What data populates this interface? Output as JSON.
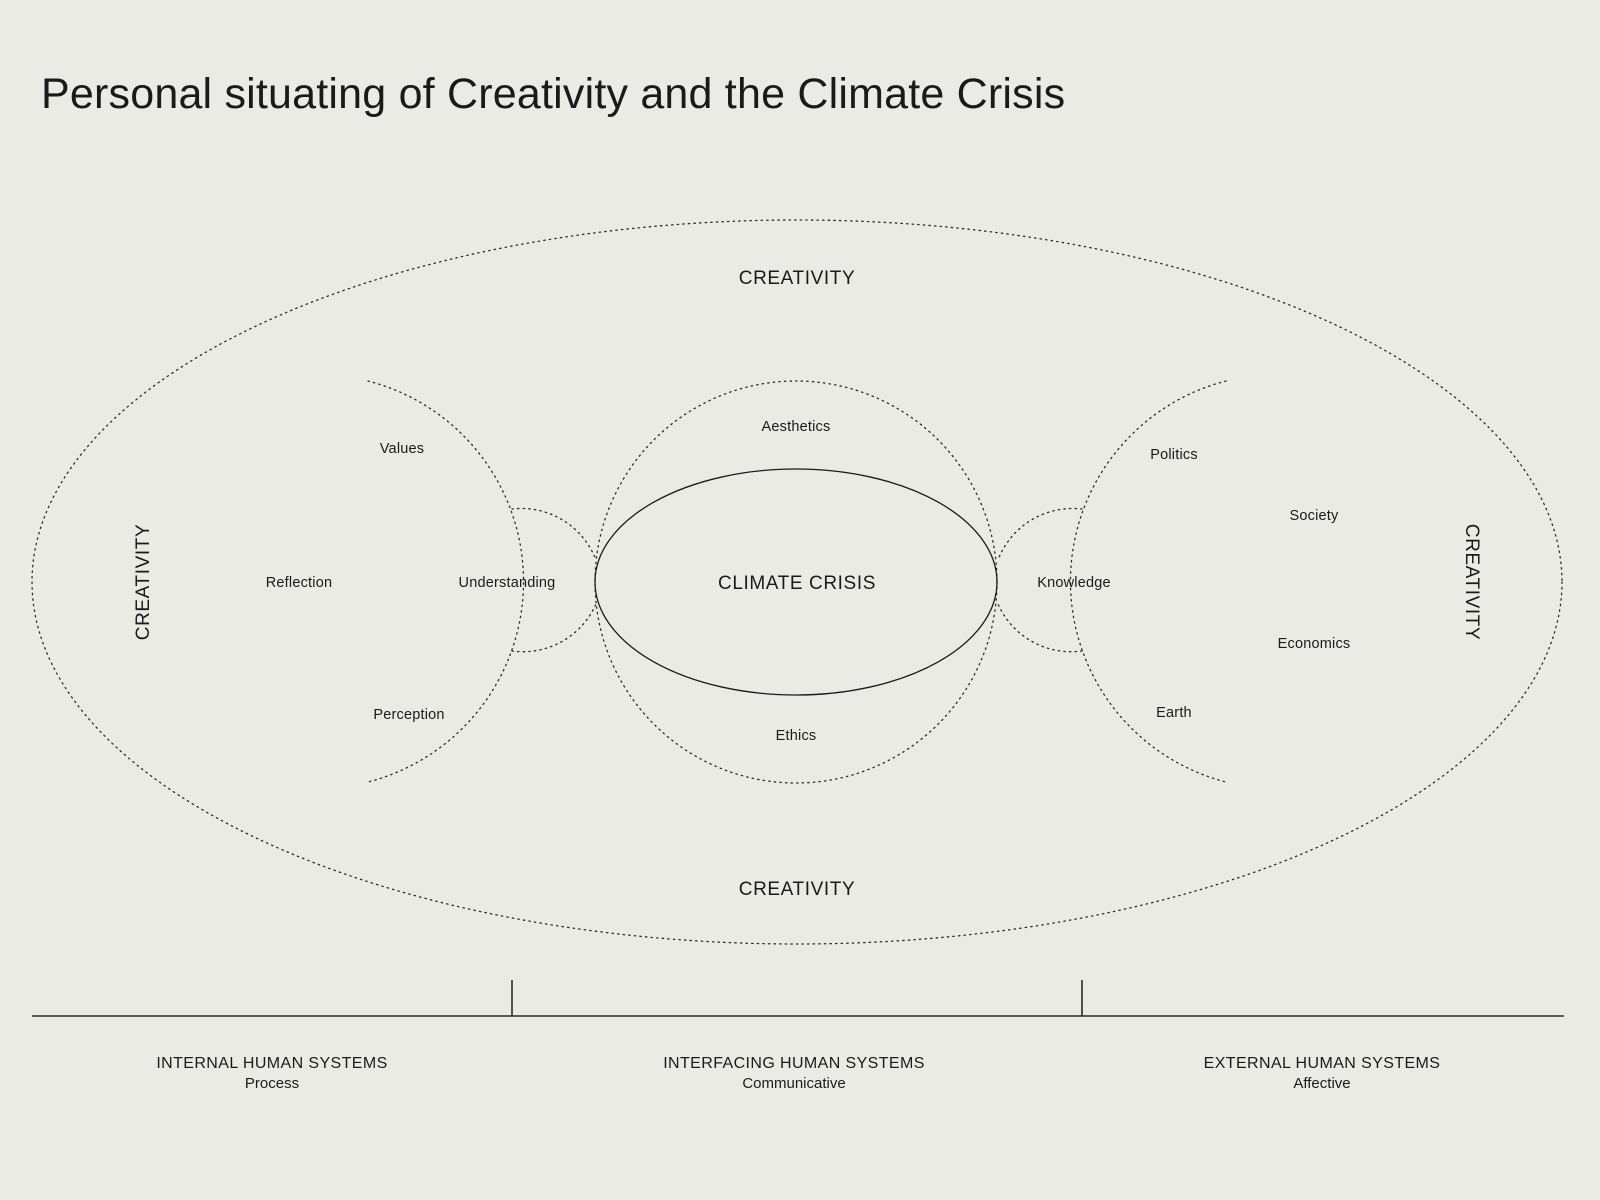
{
  "title": "Personal situating of Creativity and the Climate Crisis",
  "outer": {
    "top": "CREATIVITY",
    "bottom": "CREATIVITY",
    "left": "CREATIVITY",
    "right": "CREATIVITY"
  },
  "center": {
    "label": "CLIMATE CRISIS",
    "top": "Aesthetics",
    "bottom": "Ethics"
  },
  "left_group": {
    "values": "Values",
    "reflection": "Reflection",
    "understanding": "Understanding",
    "perception": "Perception"
  },
  "right_group": {
    "politics": "Politics",
    "society": "Society",
    "knowledge": "Knowledge",
    "economics": "Economics",
    "earth": "Earth"
  },
  "systems": [
    {
      "heading": "INTERNAL HUMAN SYSTEMS",
      "sub": "Process"
    },
    {
      "heading": "INTERFACING HUMAN SYSTEMS",
      "sub": "Communicative"
    },
    {
      "heading": "EXTERNAL HUMAN SYSTEMS",
      "sub": "Affective"
    }
  ]
}
